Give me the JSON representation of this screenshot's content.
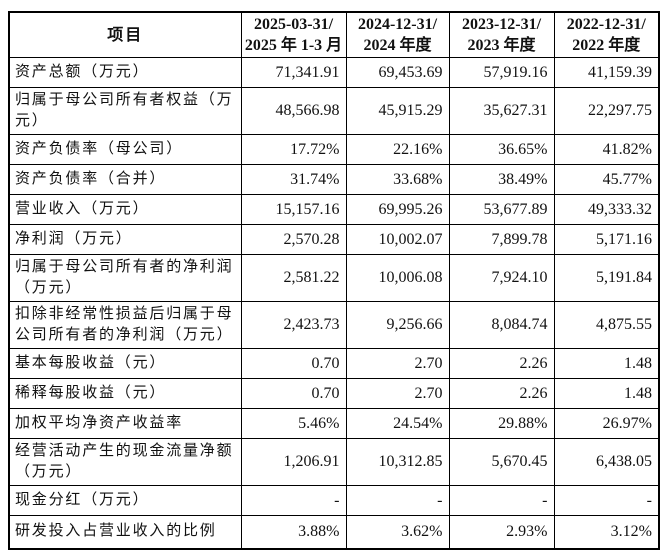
{
  "page": {
    "background": "#ffffff",
    "text_color": "#111111",
    "border_color": "#000000"
  },
  "table": {
    "header": {
      "item_label": "项目",
      "periods": [
        "2025-03-31/\n2025 年 1-3 月",
        "2024-12-31/\n2024 年度",
        "2023-12-31/\n2023 年度",
        "2022-12-31/\n2022 年度"
      ]
    },
    "rows": [
      {
        "label": "资产总额（万元）",
        "tall": false,
        "values": [
          "71,341.91",
          "69,453.69",
          "57,919.16",
          "41,159.39"
        ]
      },
      {
        "label": "归属于母公司所有者权益（万\n元）",
        "tall": true,
        "values": [
          "48,566.98",
          "45,915.29",
          "35,627.31",
          "22,297.75"
        ]
      },
      {
        "label": "资产负债率（母公司）",
        "tall": false,
        "values": [
          "17.72%",
          "22.16%",
          "36.65%",
          "41.82%"
        ]
      },
      {
        "label": "资产负债率（合并）",
        "tall": false,
        "values": [
          "31.74%",
          "33.68%",
          "38.49%",
          "45.77%"
        ]
      },
      {
        "label": "营业收入（万元）",
        "tall": false,
        "values": [
          "15,157.16",
          "69,995.26",
          "53,677.89",
          "49,333.32"
        ]
      },
      {
        "label": "净利润（万元）",
        "tall": false,
        "values": [
          "2,570.28",
          "10,002.07",
          "7,899.78",
          "5,171.16"
        ]
      },
      {
        "label": "归属于母公司所有者的净利润\n（万元）",
        "tall": true,
        "values": [
          "2,581.22",
          "10,006.08",
          "7,924.10",
          "5,191.84"
        ]
      },
      {
        "label": "扣除非经常性损益后归属于母\n公司所有者的净利润（万元）",
        "tall": true,
        "values": [
          "2,423.73",
          "9,256.66",
          "8,084.74",
          "4,875.55"
        ]
      },
      {
        "label": "基本每股收益（元）",
        "tall": false,
        "values": [
          "0.70",
          "2.70",
          "2.26",
          "1.48"
        ]
      },
      {
        "label": "稀释每股收益（元）",
        "tall": false,
        "values": [
          "0.70",
          "2.70",
          "2.26",
          "1.48"
        ]
      },
      {
        "label": "加权平均净资产收益率",
        "tall": false,
        "values": [
          "5.46%",
          "24.54%",
          "29.88%",
          "26.97%"
        ]
      },
      {
        "label": "经营活动产生的现金流量净额\n（万元）",
        "tall": true,
        "values": [
          "1,206.91",
          "10,312.85",
          "5,670.45",
          "6,438.05"
        ]
      },
      {
        "label": "现金分红（万元）",
        "tall": false,
        "values": [
          "-",
          "-",
          "-",
          "-"
        ]
      },
      {
        "label": "研发投入占营业收入的比例",
        "tall": false,
        "values": [
          "3.88%",
          "3.62%",
          "2.93%",
          "3.12%"
        ]
      }
    ]
  }
}
